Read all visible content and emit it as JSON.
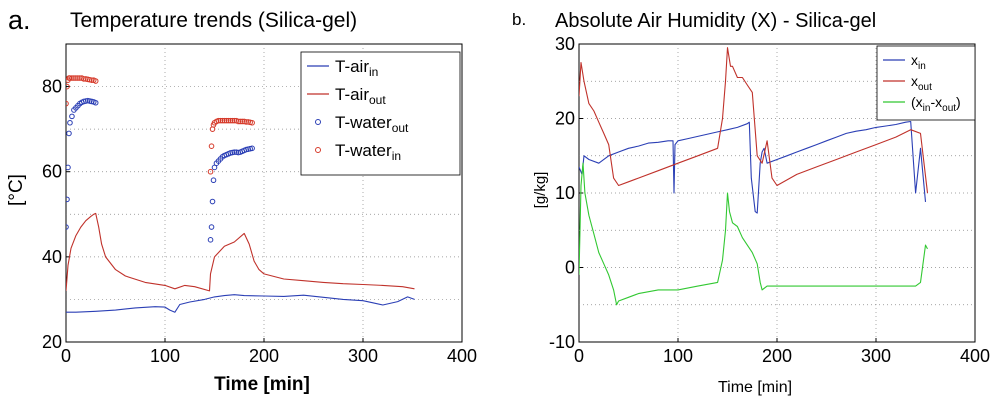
{
  "chart_data": [
    {
      "type": "line",
      "panel_letter": "a.",
      "title": "Temperature trends (Silica-gel)",
      "xlabel": "Time [min]",
      "ylabel": "[°C]",
      "xlim": [
        0,
        400
      ],
      "ylim": [
        20,
        90
      ],
      "xticks": [
        0,
        100,
        200,
        300,
        400
      ],
      "yticks": [
        20,
        40,
        60,
        80
      ],
      "grid": true,
      "legend_position": "top-right",
      "series": [
        {
          "name": "T-air",
          "sub": "in",
          "color": "#2b3fb5",
          "style": "line",
          "x": [
            0,
            10,
            30,
            50,
            70,
            90,
            100,
            105,
            110,
            115,
            125,
            140,
            150,
            160,
            170,
            180,
            200,
            220,
            240,
            260,
            280,
            300,
            310,
            320,
            335,
            345,
            352
          ],
          "y": [
            27,
            27,
            27.2,
            27.5,
            28,
            28.3,
            28.2,
            27.5,
            27,
            28.8,
            29.4,
            30,
            30.6,
            30.9,
            31.1,
            30.9,
            30.8,
            30.7,
            31,
            30.5,
            30,
            29.7,
            29.2,
            28.7,
            29.5,
            30.6,
            30
          ]
        },
        {
          "name": "T-air",
          "sub": "out",
          "color": "#c0322b",
          "style": "line",
          "x": [
            0,
            2,
            5,
            10,
            15,
            20,
            25,
            28,
            30,
            33,
            36,
            40,
            50,
            60,
            80,
            100,
            110,
            120,
            130,
            145,
            146,
            150,
            160,
            170,
            180,
            185,
            190,
            195,
            200,
            220,
            240,
            260,
            280,
            300,
            320,
            340,
            352
          ],
          "y": [
            32,
            38,
            42,
            45,
            47,
            48.5,
            49.5,
            50,
            50.2,
            47,
            43,
            40,
            37,
            35.5,
            34,
            33.3,
            32.5,
            33.3,
            33,
            32,
            36,
            40,
            42.5,
            43.5,
            45.5,
            43,
            39,
            37,
            36,
            34.8,
            34.4,
            34,
            33.7,
            33.5,
            33.3,
            33,
            32.5
          ]
        },
        {
          "name": "T-water",
          "sub": "out",
          "color": "#2b3fb5",
          "style": "marker",
          "x": [
            0,
            1,
            2,
            3,
            4,
            6,
            8,
            10,
            12,
            14,
            16,
            18,
            20,
            22,
            24,
            26,
            28,
            30,
            146,
            147,
            148,
            149,
            150,
            152,
            154,
            156,
            158,
            160,
            162,
            164,
            166,
            168,
            170,
            172,
            174,
            176,
            178,
            180,
            182,
            184,
            186,
            188
          ],
          "y": [
            47,
            53.5,
            61,
            69,
            71.5,
            73,
            74.5,
            75,
            75.5,
            76,
            76.3,
            76.5,
            76.6,
            76.7,
            76.6,
            76.5,
            76.4,
            76.2,
            44,
            47,
            53,
            58,
            61,
            62,
            62.5,
            63,
            63.5,
            63.8,
            64,
            64.2,
            64.4,
            64.5,
            64.6,
            64.6,
            64.5,
            64.6,
            64.8,
            65,
            65.2,
            65.3,
            65.4,
            65.5
          ]
        },
        {
          "name": "T-water",
          "sub": "in",
          "color": "#d63a2a",
          "style": "marker",
          "x": [
            0,
            1,
            2,
            3,
            4,
            6,
            8,
            10,
            12,
            14,
            16,
            18,
            20,
            22,
            24,
            26,
            28,
            30,
            146,
            147,
            148,
            149,
            150,
            152,
            154,
            156,
            158,
            160,
            162,
            164,
            166,
            168,
            170,
            172,
            174,
            176,
            178,
            180,
            182,
            184,
            186,
            188
          ],
          "y": [
            76,
            80,
            81.5,
            82,
            82,
            82,
            82,
            82,
            82,
            82,
            82,
            81.8,
            81.8,
            81.7,
            81.6,
            81.5,
            81.5,
            81.3,
            60,
            66,
            70,
            71,
            71.5,
            71.8,
            72,
            72,
            72,
            72,
            72,
            72,
            72,
            72,
            72,
            72,
            71.8,
            71.8,
            71.8,
            71.8,
            71.7,
            71.7,
            71.6,
            71.5
          ]
        }
      ]
    },
    {
      "type": "line",
      "panel_letter": "b.",
      "title": "Absolute Air Humidity (X) - Silica-gel",
      "xlabel": "Time [min]",
      "ylabel": "[g/kg]",
      "xlim": [
        0,
        400
      ],
      "ylim": [
        -10,
        30
      ],
      "xticks": [
        0,
        100,
        200,
        300,
        400
      ],
      "yticks": [
        -10,
        0,
        10,
        20,
        30
      ],
      "grid": true,
      "legend_position": "top-right",
      "series": [
        {
          "name": "x",
          "sub": "in",
          "color": "#2b3fb5",
          "style": "line",
          "x": [
            0,
            3,
            5,
            10,
            20,
            30,
            40,
            50,
            60,
            70,
            80,
            90,
            95,
            96,
            97,
            100,
            110,
            120,
            130,
            140,
            150,
            160,
            170,
            172,
            174,
            178,
            180,
            183,
            185,
            187,
            190,
            200,
            210,
            220,
            230,
            240,
            250,
            260,
            270,
            280,
            290,
            300,
            310,
            320,
            330,
            335,
            340,
            345,
            350
          ],
          "y": [
            13.5,
            12.5,
            15,
            14.5,
            14,
            15,
            15.5,
            16,
            16.3,
            16.7,
            16.8,
            17,
            17,
            10,
            16.5,
            17,
            17.3,
            17.6,
            17.9,
            18.2,
            18.5,
            18.8,
            19.3,
            19.5,
            12,
            7.5,
            7.3,
            14,
            15.5,
            16,
            14,
            14.5,
            15,
            15.5,
            16,
            16.5,
            17,
            17.5,
            18,
            18.3,
            18.5,
            18.8,
            19,
            19.2,
            19.5,
            19.6,
            10,
            16,
            8.8
          ]
        },
        {
          "name": "x",
          "sub": "out",
          "color": "#c0322b",
          "style": "line",
          "x": [
            0,
            2,
            5,
            10,
            15,
            20,
            25,
            30,
            35,
            40,
            50,
            60,
            80,
            100,
            120,
            140,
            145,
            148,
            150,
            153,
            155,
            160,
            165,
            170,
            175,
            180,
            185,
            190,
            195,
            200,
            220,
            240,
            260,
            280,
            300,
            320,
            335,
            345,
            352
          ],
          "y": [
            23,
            27.5,
            25,
            22,
            21,
            19.5,
            18,
            16.5,
            12,
            11,
            11.5,
            12,
            13,
            14,
            15,
            16,
            20,
            25,
            29.5,
            27,
            27,
            25.5,
            25.5,
            24.5,
            23.5,
            15,
            14,
            17,
            12,
            11,
            12.5,
            13.5,
            14.5,
            15.5,
            16.5,
            17.5,
            18.5,
            18,
            10
          ]
        },
        {
          "name": "(x",
          "sub": "in",
          "name2": "-x",
          "sub2": "out",
          "tail": ")",
          "color": "#32c832",
          "style": "line",
          "x": [
            0,
            2,
            4,
            6,
            10,
            15,
            20,
            25,
            30,
            35,
            38,
            40,
            50,
            60,
            80,
            100,
            120,
            140,
            145,
            148,
            150,
            152,
            155,
            160,
            165,
            170,
            175,
            180,
            183,
            185,
            190,
            200,
            220,
            240,
            260,
            280,
            300,
            320,
            340,
            345,
            350,
            352
          ],
          "y": [
            -1,
            11,
            14,
            10,
            7,
            4.5,
            2,
            0.5,
            -1,
            -3,
            -5,
            -4.5,
            -4,
            -3.5,
            -3,
            -3,
            -2.5,
            -2,
            1,
            5,
            10,
            7.5,
            6,
            5.5,
            4,
            3,
            2,
            0.5,
            -2,
            -3,
            -2.5,
            -2.5,
            -2.5,
            -2.5,
            -2.5,
            -2.5,
            -2.5,
            -2.5,
            -2.5,
            -2,
            3,
            2.5
          ]
        }
      ]
    }
  ]
}
